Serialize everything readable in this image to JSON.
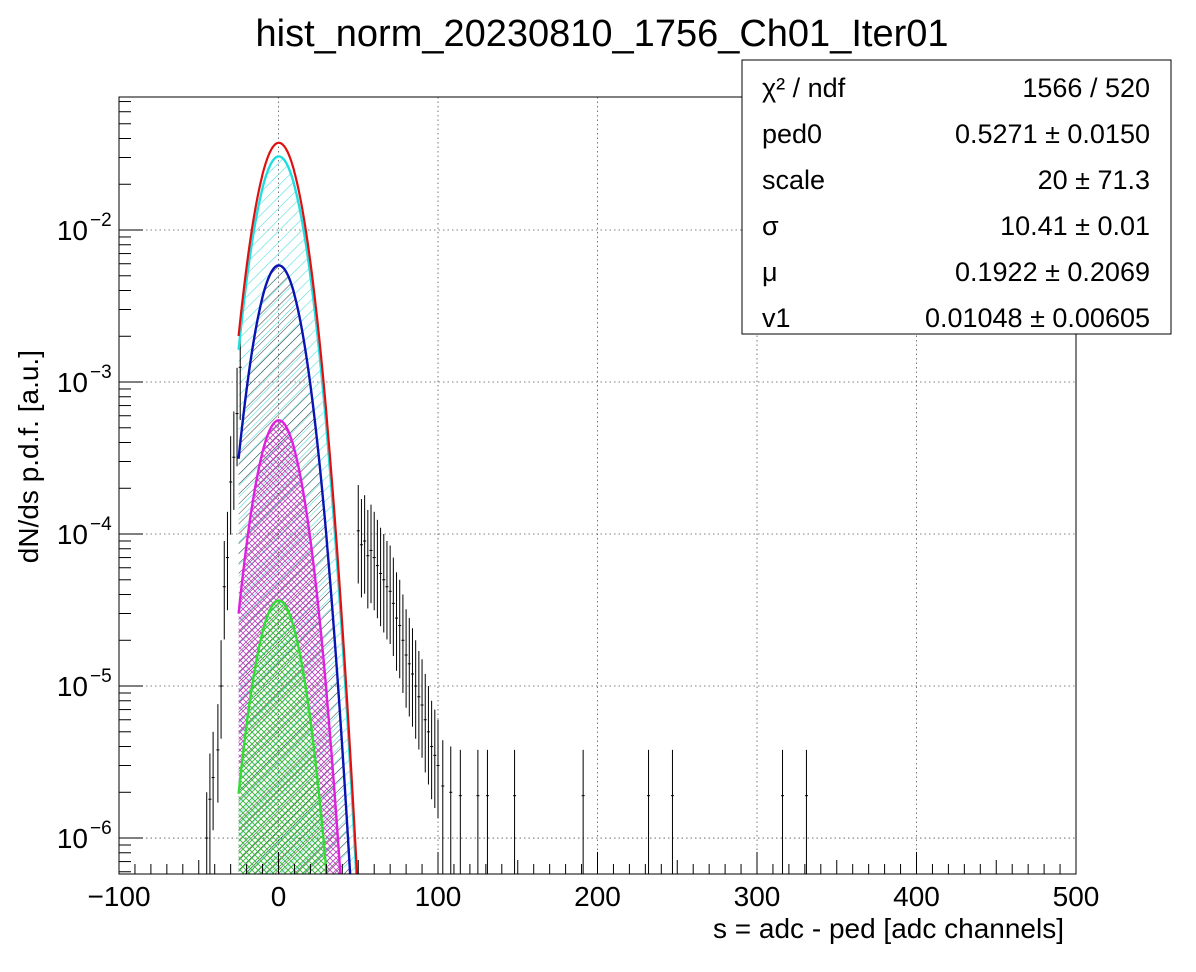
{
  "chart_data": {
    "type": "scatter",
    "title": "hist_norm_20230810_1756_Ch01_Iter01",
    "xlabel": "s = adc - ped [adc channels]",
    "ylabel": "dN/ds p.d.f. [a.u.]",
    "xlim": [
      -100,
      500
    ],
    "ylim": [
      5.8e-07,
      0.075
    ],
    "yscale": "log",
    "grid": true,
    "x_ticks": [
      -100,
      0,
      100,
      200,
      300,
      400,
      500
    ],
    "x_tick_labels": [
      "−100",
      "0",
      "100",
      "200",
      "300",
      "400",
      "500"
    ],
    "y_ticks": [
      1e-06,
      1e-05,
      0.0001,
      0.001,
      0.01
    ],
    "y_tick_labels": [
      {
        "base": "10",
        "exp": "−6"
      },
      {
        "base": "10",
        "exp": "−5"
      },
      {
        "base": "10",
        "exp": "−4"
      },
      {
        "base": "10",
        "exp": "−3"
      },
      {
        "base": "10",
        "exp": "−2"
      }
    ],
    "stats_box": {
      "placement": "top-right",
      "rows": [
        {
          "label": "χ² / ndf",
          "value": "1566 / 520"
        },
        {
          "label": "ped0",
          "value": "0.5271 ± 0.0150"
        },
        {
          "label": "scale",
          "value": "20 ± 71.3"
        },
        {
          "label": "σ",
          "value": "10.41 ± 0.01"
        },
        {
          "label": "μ",
          "value": "0.1922 ± 0.2069"
        },
        {
          "label": "v1",
          "value": "0.01048 ± 0.00605"
        }
      ]
    },
    "series": [
      {
        "role": "total fit",
        "color": "#e01010",
        "amplitude": 0.0375,
        "mean": 0.19,
        "sigma": 10.41,
        "range": [
          -25,
          50
        ],
        "fill": "none"
      },
      {
        "role": "component 0",
        "color": "#22dddd",
        "amplitude": 0.0305,
        "mean": 0.19,
        "sigma": 10.41,
        "range": [
          -25,
          50
        ],
        "fill": "hatch"
      },
      {
        "role": "component 1",
        "color": "#0a14b4",
        "amplitude": 0.00585,
        "mean": 0.19,
        "sigma": 10.41,
        "range": [
          -25,
          50
        ],
        "fill": "hatch"
      },
      {
        "role": "component 2",
        "color": "#e020e0",
        "amplitude": 0.00056,
        "mean": 0.19,
        "sigma": 10.41,
        "range": [
          -25,
          50
        ],
        "fill": "crosshatch"
      },
      {
        "role": "component 3",
        "color": "#33dd33",
        "amplitude": 3.65e-05,
        "mean": 0.19,
        "sigma": 10.41,
        "range": [
          -25,
          50
        ],
        "fill": "crosshatch"
      }
    ],
    "histogram_points": [
      [
        -45,
        1e-06
      ],
      [
        -43,
        1.8e-06
      ],
      [
        -41,
        2.5e-06
      ],
      [
        -38,
        3.8e-06
      ],
      [
        -36,
        1e-05
      ],
      [
        -34,
        4.5e-05
      ],
      [
        -32,
        7e-05
      ],
      [
        -30,
        0.00022
      ],
      [
        -28,
        0.00032
      ],
      [
        -26,
        0.00062
      ],
      [
        -24,
        0.00125
      ],
      [
        50,
        0.000105
      ],
      [
        52,
        8.5e-05
      ],
      [
        54,
        9e-05
      ],
      [
        56,
        7.2e-05
      ],
      [
        58,
        7.8e-05
      ],
      [
        60,
        7e-05
      ],
      [
        62,
        6.2e-05
      ],
      [
        64,
        5.5e-05
      ],
      [
        66,
        5e-05
      ],
      [
        68,
        4.5e-05
      ],
      [
        70,
        4.2e-05
      ],
      [
        72,
        3.5e-05
      ],
      [
        74,
        2.8e-05
      ],
      [
        76,
        2.5e-05
      ],
      [
        78,
        2e-05
      ],
      [
        80,
        1.6e-05
      ],
      [
        82,
        1.4e-05
      ],
      [
        84,
        1.2e-05
      ],
      [
        86,
        1e-05
      ],
      [
        88,
        8.5e-06
      ],
      [
        90,
        7.5e-06
      ],
      [
        92,
        6e-06
      ],
      [
        94,
        5e-06
      ],
      [
        96,
        4e-06
      ],
      [
        98,
        3.5e-06
      ],
      [
        100,
        3e-06
      ],
      [
        103,
        2.2e-06
      ],
      [
        108,
        2e-06
      ],
      [
        114,
        1.9e-06
      ],
      [
        125,
        1.9e-06
      ],
      [
        131,
        1.9e-06
      ],
      [
        148,
        1.9e-06
      ],
      [
        191,
        1.9e-06
      ],
      [
        232,
        1.9e-06
      ],
      [
        247,
        1.9e-06
      ],
      [
        316,
        1.9e-06
      ],
      [
        331,
        1.9e-06
      ]
    ]
  }
}
